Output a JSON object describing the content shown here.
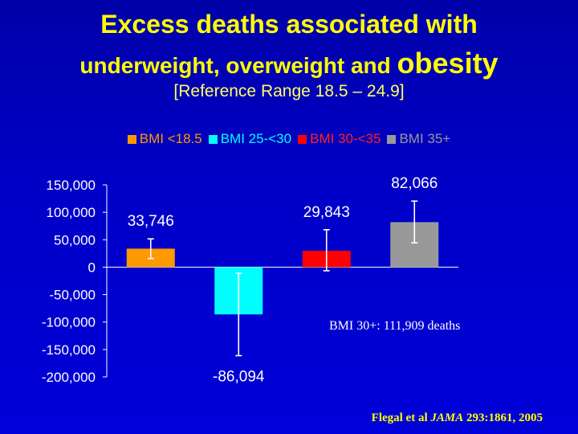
{
  "title": {
    "line1": "Excess deaths associated with",
    "line2_a": "underweight, overweight and ",
    "line2_b": "obesity",
    "line3": "[Reference Range 18.5 – 24.9]"
  },
  "annotation": "BMI 30+:  111,909 deaths",
  "citation": {
    "authors": "Flegal et al ",
    "journal": "JAMA",
    "ref": " 293:1861, 2005"
  },
  "colors": {
    "background": "#0000c8",
    "title": "#ffff00",
    "axis": "#ffffff"
  },
  "chart_data": {
    "type": "bar",
    "categories": [
      "BMI <18.5",
      "BMI 25-<30",
      "BMI 30-<35",
      "BMI 35+"
    ],
    "values": [
      33746,
      -86094,
      29843,
      82066
    ],
    "value_labels": [
      "33,746",
      "-86,094",
      "29,843",
      "82,066"
    ],
    "error_low": [
      15700,
      -161200,
      -6500,
      44400
    ],
    "error_high": [
      51600,
      -11000,
      68300,
      120400
    ],
    "colors": [
      "#ff9900",
      "#00ffff",
      "#ff0000",
      "#999999"
    ],
    "legend_text_colors": [
      "#ff9900",
      "#00ffff",
      "#ff2020",
      "#999999"
    ],
    "ylim": [
      -200000,
      150000
    ],
    "yticks": [
      150000,
      100000,
      50000,
      0,
      -50000,
      -100000,
      -150000,
      -200000
    ],
    "ytick_labels": [
      "150,000",
      "100,000",
      "50,000",
      "0",
      "-50,000",
      "-100,000",
      "-150,000",
      "-200,000"
    ],
    "legend_position": "top",
    "grid": false
  }
}
